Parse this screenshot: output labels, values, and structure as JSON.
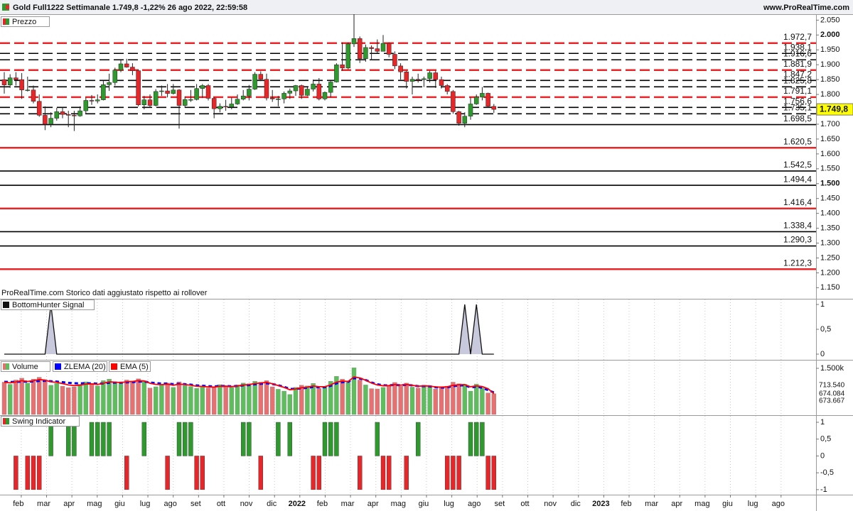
{
  "header": {
    "title": "Gold Full1222 Settimanale 1.749,8 -1,22% 26 ago 2022, 22:59:58",
    "site": "www.ProRealTime.com"
  },
  "chart_data": [
    {
      "type": "candlestick",
      "title": "Prezzo",
      "up_color": "#2e9a2e",
      "down_color": "#e8262a",
      "ylim": [
        1115,
        2070
      ],
      "yticks": [
        {
          "value": 2050,
          "label": "2.050"
        },
        {
          "value": 2000,
          "label": "2.000"
        },
        {
          "value": 1950,
          "label": "1.950"
        },
        {
          "value": 1900,
          "label": "1.900"
        },
        {
          "value": 1850,
          "label": "1.850"
        },
        {
          "value": 1800,
          "label": "1.800"
        },
        {
          "value": 1750,
          "label": "1.750"
        },
        {
          "value": 1700,
          "label": "1.700"
        },
        {
          "value": 1650,
          "label": "1.650"
        },
        {
          "value": 1600,
          "label": "1.600"
        },
        {
          "value": 1550,
          "label": "1.550"
        },
        {
          "value": 1500,
          "label": "1.500"
        },
        {
          "value": 1450,
          "label": "1.450"
        },
        {
          "value": 1400,
          "label": "1.400"
        },
        {
          "value": 1350,
          "label": "1.350"
        },
        {
          "value": 1300,
          "label": "1.300"
        },
        {
          "value": 1250,
          "label": "1.250"
        },
        {
          "value": 1200,
          "label": "1.200"
        },
        {
          "value": 1150,
          "label": "1.150"
        }
      ],
      "candles": [
        [
          1850,
          1875,
          1803,
          1832
        ],
        [
          1832,
          1868,
          1822,
          1856
        ],
        [
          1856,
          1875,
          1830,
          1850
        ],
        [
          1850,
          1872,
          1785,
          1815
        ],
        [
          1815,
          1860,
          1810,
          1815
        ],
        [
          1815,
          1830,
          1770,
          1777
        ],
        [
          1777,
          1800,
          1725,
          1730
        ],
        [
          1730,
          1760,
          1680,
          1700
        ],
        [
          1700,
          1740,
          1690,
          1720
        ],
        [
          1720,
          1755,
          1712,
          1742
        ],
        [
          1742,
          1757,
          1720,
          1733
        ],
        [
          1733,
          1745,
          1690,
          1730
        ],
        [
          1730,
          1745,
          1677,
          1728
        ],
        [
          1728,
          1760,
          1725,
          1745
        ],
        [
          1745,
          1790,
          1735,
          1780
        ],
        [
          1780,
          1798,
          1765,
          1778
        ],
        [
          1778,
          1800,
          1770,
          1782
        ],
        [
          1782,
          1845,
          1780,
          1833
        ],
        [
          1833,
          1870,
          1812,
          1840
        ],
        [
          1840,
          1890,
          1830,
          1882
        ],
        [
          1882,
          1915,
          1875,
          1903
        ],
        [
          1903,
          1920,
          1890,
          1892
        ],
        [
          1892,
          1905,
          1865,
          1880
        ],
        [
          1880,
          1885,
          1760,
          1765
        ],
        [
          1765,
          1795,
          1750,
          1782
        ],
        [
          1782,
          1800,
          1755,
          1763
        ],
        [
          1763,
          1818,
          1760,
          1810
        ],
        [
          1810,
          1830,
          1795,
          1812
        ],
        [
          1812,
          1835,
          1790,
          1803
        ],
        [
          1803,
          1835,
          1800,
          1815
        ],
        [
          1815,
          1818,
          1685,
          1763
        ],
        [
          1763,
          1793,
          1755,
          1783
        ],
        [
          1783,
          1815,
          1775,
          1783
        ],
        [
          1783,
          1835,
          1780,
          1820
        ],
        [
          1820,
          1835,
          1788,
          1830
        ],
        [
          1830,
          1835,
          1780,
          1787
        ],
        [
          1787,
          1790,
          1720,
          1752
        ],
        [
          1752,
          1770,
          1740,
          1760
        ],
        [
          1760,
          1782,
          1745,
          1758
        ],
        [
          1758,
          1790,
          1750,
          1768
        ],
        [
          1768,
          1800,
          1765,
          1784
        ],
        [
          1784,
          1815,
          1780,
          1795
        ],
        [
          1795,
          1832,
          1780,
          1818
        ],
        [
          1818,
          1875,
          1815,
          1868
        ],
        [
          1868,
          1878,
          1845,
          1851
        ],
        [
          1851,
          1870,
          1780,
          1788
        ],
        [
          1788,
          1815,
          1775,
          1785
        ],
        [
          1785,
          1795,
          1760,
          1785
        ],
        [
          1785,
          1810,
          1770,
          1804
        ],
        [
          1804,
          1820,
          1785,
          1812
        ],
        [
          1812,
          1832,
          1795,
          1830
        ],
        [
          1830,
          1833,
          1785,
          1797
        ],
        [
          1797,
          1825,
          1795,
          1818
        ],
        [
          1818,
          1850,
          1810,
          1835
        ],
        [
          1835,
          1855,
          1780,
          1785
        ],
        [
          1785,
          1810,
          1780,
          1807
        ],
        [
          1807,
          1845,
          1790,
          1842
        ],
        [
          1842,
          1905,
          1840,
          1900
        ],
        [
          1900,
          1975,
          1880,
          1889
        ],
        [
          1889,
          1975,
          1885,
          1970
        ],
        [
          1970,
          2070,
          1960,
          1988
        ],
        [
          1988,
          1995,
          1906,
          1920
        ],
        [
          1920,
          1968,
          1910,
          1958
        ],
        [
          1958,
          1965,
          1915,
          1954
        ],
        [
          1954,
          1985,
          1940,
          1945
        ],
        [
          1945,
          2000,
          1945,
          1972
        ],
        [
          1972,
          1975,
          1925,
          1935
        ],
        [
          1935,
          1945,
          1885,
          1896
        ],
        [
          1896,
          1905,
          1850,
          1876
        ],
        [
          1876,
          1880,
          1820,
          1844
        ],
        [
          1844,
          1860,
          1800,
          1851
        ],
        [
          1851,
          1870,
          1840,
          1850
        ],
        [
          1850,
          1860,
          1825,
          1853
        ],
        [
          1853,
          1880,
          1840,
          1873
        ],
        [
          1873,
          1880,
          1822,
          1850
        ],
        [
          1850,
          1860,
          1820,
          1830
        ],
        [
          1830,
          1835,
          1800,
          1810
        ],
        [
          1810,
          1815,
          1735,
          1742
        ],
        [
          1742,
          1745,
          1695,
          1703
        ],
        [
          1703,
          1740,
          1690,
          1727
        ],
        [
          1727,
          1790,
          1715,
          1768
        ],
        [
          1768,
          1800,
          1765,
          1791
        ],
        [
          1791,
          1825,
          1780,
          1804
        ],
        [
          1804,
          1806,
          1755,
          1760
        ],
        [
          1760,
          1768,
          1738,
          1749.8
        ]
      ],
      "levels": [
        {
          "value": 1972.7,
          "label": "1.972,7",
          "color": "#e8262a",
          "style": "dashed"
        },
        {
          "value": 1938.1,
          "label": "1.938,1",
          "color": "#000000",
          "style": "dashed"
        },
        {
          "value": 1916.6,
          "label": "1.916,6",
          "color": "#000000",
          "style": "dashed"
        },
        {
          "value": 1881.9,
          "label": "1.881,9",
          "color": "#e8262a",
          "style": "dashed"
        },
        {
          "value": 1847.2,
          "label": "1.847,2",
          "color": "#000000",
          "style": "dashed"
        },
        {
          "value": 1825.8,
          "label": "1.825,8",
          "color": "#000000",
          "style": "dashed"
        },
        {
          "value": 1791.1,
          "label": "1.791,1",
          "color": "#e8262a",
          "style": "dashed"
        },
        {
          "value": 1756.6,
          "label": "1.756,6",
          "color": "#000000",
          "style": "dashed"
        },
        {
          "value": 1735.1,
          "label": "1.735,1",
          "color": "#000000",
          "style": "dashed"
        },
        {
          "value": 1698.5,
          "label": "1.698,5",
          "color": "#000000",
          "style": "solid"
        },
        {
          "value": 1620.5,
          "label": "1.620,5",
          "color": "#e8262a",
          "style": "solid"
        },
        {
          "value": 1542.5,
          "label": "1.542,5",
          "color": "#000000",
          "style": "solid"
        },
        {
          "value": 1494.4,
          "label": "1.494,4",
          "color": "#000000",
          "style": "solid"
        },
        {
          "value": 1416.4,
          "label": "1.416,4",
          "color": "#e8262a",
          "style": "solid"
        },
        {
          "value": 1338.4,
          "label": "1.338,4",
          "color": "#000000",
          "style": "solid"
        },
        {
          "value": 1290.3,
          "label": "1.290,3",
          "color": "#000000",
          "style": "solid"
        },
        {
          "value": 1212.3,
          "label": "1.212,3",
          "color": "#e8262a",
          "style": "solid"
        }
      ],
      "last_label": {
        "value": 1749.8,
        "label": "1.749,8",
        "color": "#ffff00"
      },
      "note": "ProRealTime.com Storico dati aggiustato rispetto ai rollover"
    },
    {
      "type": "area",
      "title": "BottomHunter Signal",
      "color": "#111111",
      "fill": "#c9c9dd",
      "ylim": [
        -0.1,
        1.1
      ],
      "yticks": [
        1,
        {
          "value": 0.5,
          "label": "0,5"
        },
        0
      ],
      "values": [
        0,
        0,
        0,
        0,
        0,
        0,
        0,
        0,
        1,
        0,
        0,
        0,
        0,
        0,
        0,
        0,
        0,
        0,
        0,
        0,
        0,
        0,
        0,
        0,
        0,
        0,
        0,
        0,
        0,
        0,
        0,
        0,
        0,
        0,
        0,
        0,
        0,
        0,
        0,
        0,
        0,
        0,
        0,
        0,
        0,
        0,
        0,
        0,
        0,
        0,
        0,
        0,
        0,
        0,
        0,
        0,
        0,
        0,
        0,
        0,
        0,
        0,
        0,
        0,
        0,
        0,
        0,
        0,
        0,
        0,
        0,
        0,
        0,
        0,
        0,
        0,
        0,
        0,
        0,
        1,
        0,
        1,
        0,
        0,
        0
      ]
    },
    {
      "type": "volume",
      "title": "Volume",
      "up_color": "#5cbf5c",
      "down_color": "#e87070",
      "ylim": [
        0,
        1730
      ],
      "yticks": [
        {
          "value": 1500,
          "label": "1.500k"
        }
      ],
      "values": [
        1050,
        980,
        1120,
        1180,
        1020,
        1150,
        1210,
        1080,
        950,
        1010,
        920,
        870,
        900,
        980,
        1060,
        1010,
        930,
        1100,
        1150,
        1040,
        1000,
        1120,
        1090,
        1160,
        1070,
        860,
        900,
        950,
        1020,
        880,
        1060,
        940,
        910,
        850,
        900,
        860,
        880,
        970,
        930,
        880,
        960,
        1020,
        1000,
        1080,
        1050,
        1100,
        900,
        820,
        760,
        650,
        880,
        950,
        930,
        1010,
        850,
        900,
        1080,
        1240,
        1150,
        1050,
        1520,
        1120,
        960,
        840,
        830,
        880,
        950,
        1040,
        920,
        1020,
        890,
        860,
        950,
        920,
        830,
        880,
        920,
        1050,
        1000,
        980,
        760,
        990,
        860,
        700,
        673.667
      ],
      "series": [
        {
          "name": "ZLEMA (20)",
          "color": "#0000ff",
          "style": "dashed",
          "values": [
            1060,
            1055,
            1060,
            1070,
            1068,
            1075,
            1090,
            1095,
            1080,
            1070,
            1050,
            1030,
            1015,
            1010,
            1015,
            1012,
            1000,
            1010,
            1030,
            1035,
            1030,
            1045,
            1050,
            1070,
            1070,
            1040,
            1020,
            1005,
            1005,
            985,
            995,
            985,
            970,
            945,
            935,
            920,
            912,
            925,
            925,
            915,
            925,
            945,
            955,
            980,
            995,
            1015,
            990,
            950,
            900,
            830,
            830,
            850,
            865,
            895,
            885,
            885,
            930,
            1010,
            1050,
            1060,
            1180,
            1170,
            1120,
            1040,
            980,
            950,
            945,
            965,
            950,
            965,
            945,
            920,
            920,
            915,
            885,
            875,
            880,
            920,
            940,
            950,
            880,
            900,
            870,
            790,
            713.54
          ]
        },
        {
          "name": "EMA (5)",
          "color": "#ff0000",
          "style": "solid",
          "values": [
            1050,
            1027,
            1058,
            1098,
            1072,
            1098,
            1135,
            1117,
            1062,
            1045,
            1004,
            960,
            940,
            953,
            988,
            995,
            974,
            1016,
            1060,
            1053,
            1036,
            1064,
            1073,
            1102,
            1091,
            1015,
            977,
            968,
            985,
            950,
            986,
            971,
            951,
            918,
            912,
            895,
            890,
            916,
            921,
            907,
            925,
            956,
            971,
            1007,
            1021,
            1047,
            998,
            939,
            880,
            804,
            829,
            869,
            889,
            929,
            903,
            902,
            961,
            1053,
            1085,
            1073,
            1221,
            1188,
            1113,
            1023,
            959,
            933,
            939,
            972,
            955,
            976,
            948,
            919,
            929,
            926,
            894,
            889,
            899,
            949,
            966,
            971,
            901,
            930,
            907,
            839,
            674.084
          ]
        }
      ],
      "last_labels": [
        {
          "value": 713.54,
          "label": "713.540",
          "color": "#0000ff"
        },
        {
          "value": 674.084,
          "label": "674.084",
          "color": "#ff0000"
        },
        {
          "value": 673.667,
          "label": "673.667",
          "color": "#2e9a2e"
        }
      ]
    },
    {
      "type": "bar",
      "title": "Swing Indicator",
      "up_color": "#2e9a2e",
      "down_color": "#e8262a",
      "ylim": [
        -1.15,
        1.19
      ],
      "yticks": [
        1,
        {
          "value": 0.5,
          "label": "0,5"
        },
        0,
        {
          "value": -0.5,
          "label": "-0,5"
        },
        -1
      ],
      "values": [
        0,
        0,
        -1,
        0,
        -1,
        -1,
        -1,
        0,
        1,
        0,
        0,
        1,
        1,
        0,
        0,
        1,
        1,
        1,
        1,
        0,
        0,
        -1,
        0,
        0,
        1,
        0,
        0,
        0,
        -1,
        0,
        1,
        1,
        1,
        -1,
        -1,
        0,
        0,
        0,
        0,
        0,
        0,
        1,
        1,
        0,
        -1,
        0,
        0,
        1,
        0,
        1,
        0,
        0,
        0,
        -1,
        -1,
        1,
        1,
        1,
        0,
        0,
        0,
        -1,
        0,
        0,
        1,
        -1,
        -1,
        0,
        0,
        -1,
        0,
        1,
        0,
        0,
        0,
        0,
        -1,
        -1,
        -1,
        0,
        1,
        1,
        1,
        -1,
        -1
      ],
      "x_labels": [
        "feb",
        "mar",
        "apr",
        "mag",
        "giu",
        "lug",
        "ago",
        "set",
        "ott",
        "nov",
        "dic",
        "2022",
        "feb",
        "mar",
        "apr",
        "mag",
        "giu",
        "lug",
        "ago",
        "set",
        "ott",
        "nov",
        "dic",
        "2023",
        "feb",
        "mar",
        "apr",
        "mag",
        "giu",
        "lug",
        "ago"
      ]
    }
  ]
}
